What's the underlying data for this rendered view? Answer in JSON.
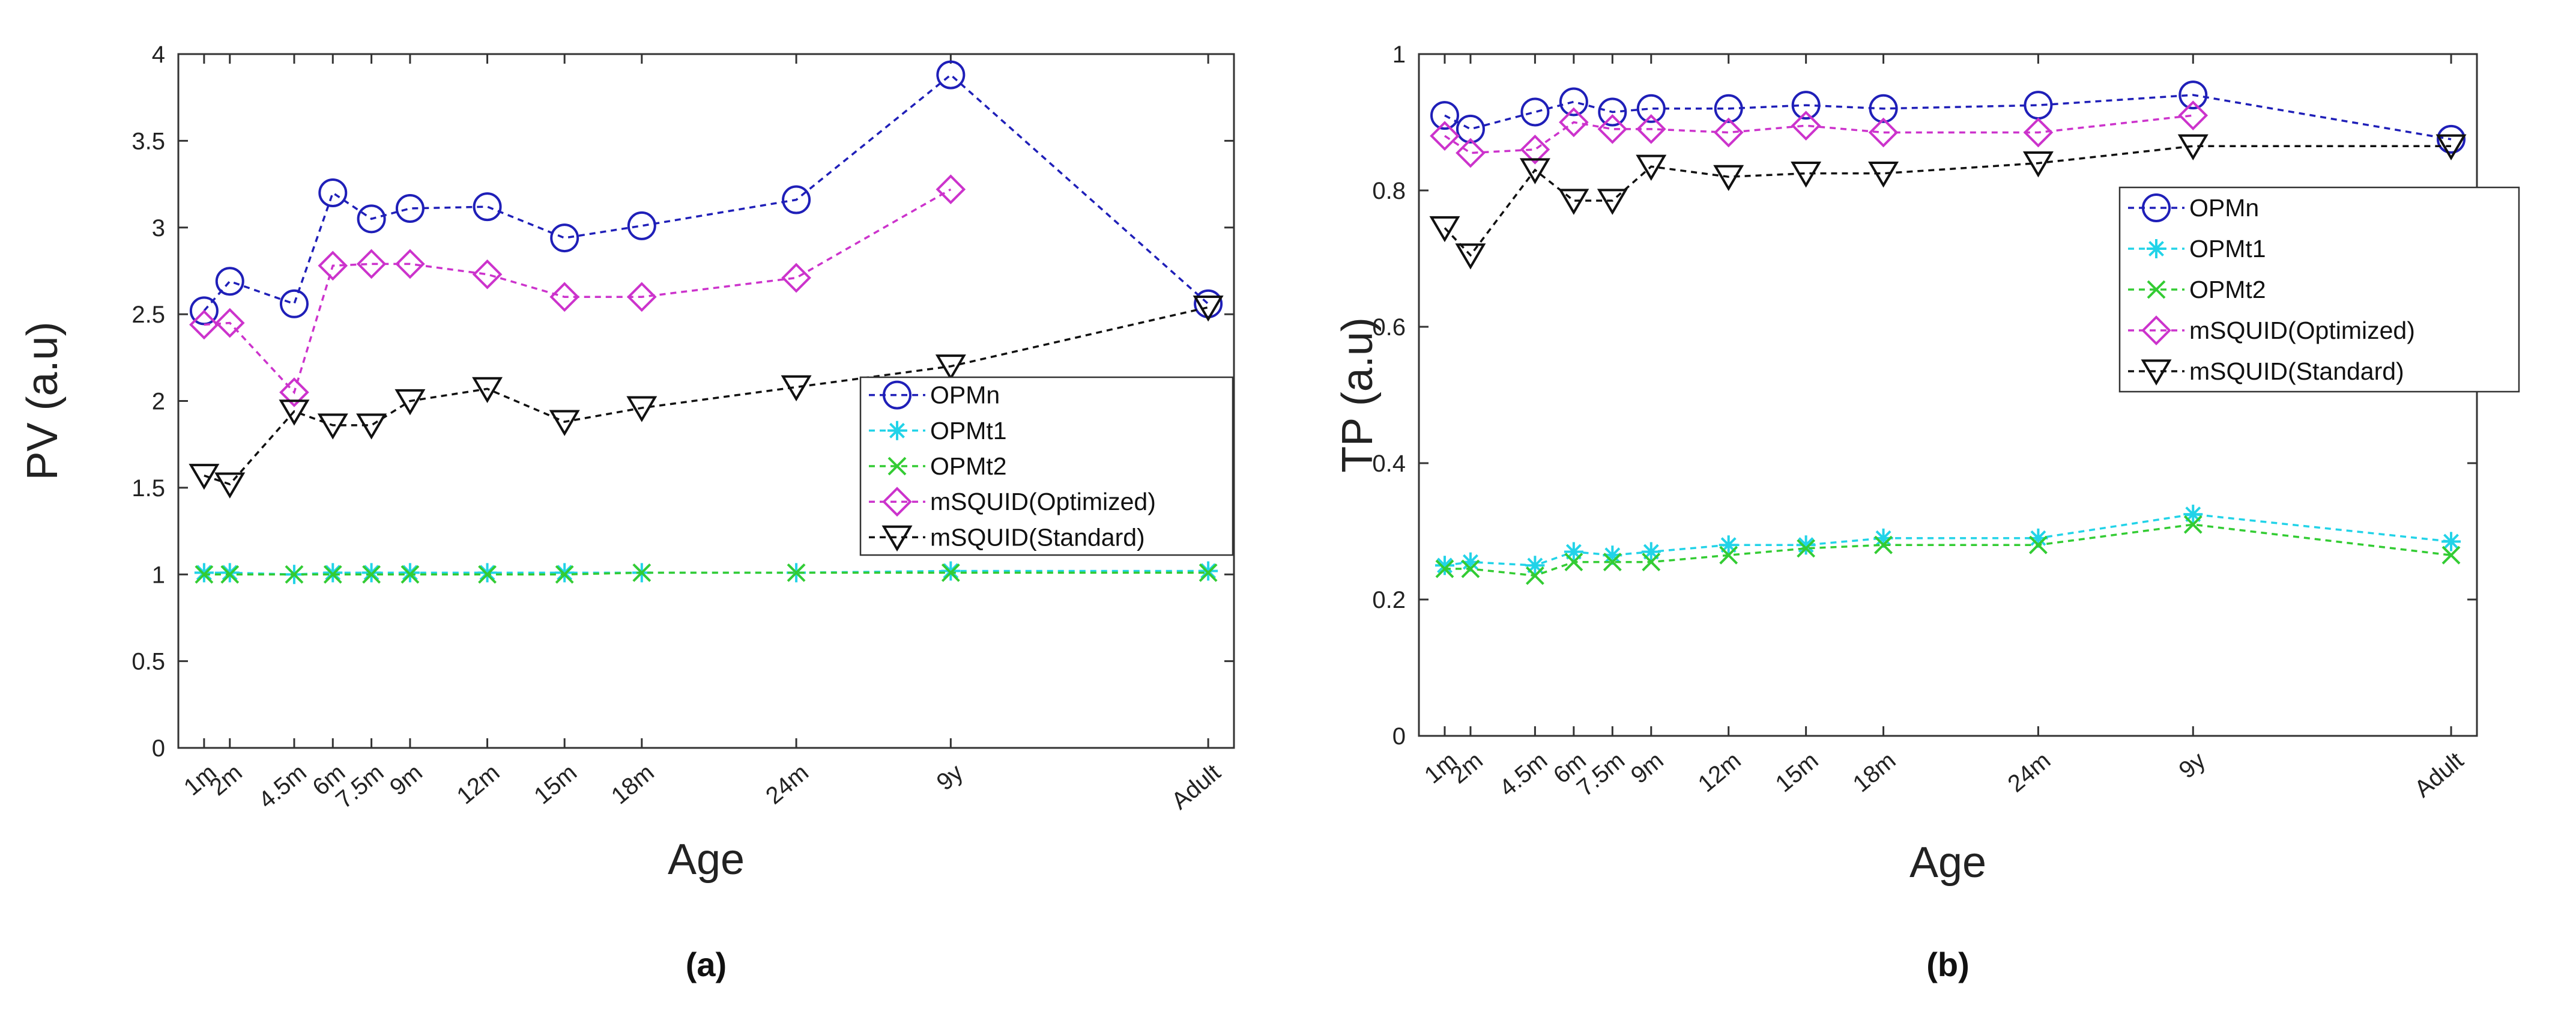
{
  "figure": {
    "series_defs": [
      {
        "name": "OPMn",
        "color": "#1f1fb8",
        "marker": "circle"
      },
      {
        "name": "OPMt1",
        "color": "#22d3e8",
        "marker": "asterisk"
      },
      {
        "name": "OPMt2",
        "color": "#33cc33",
        "marker": "x"
      },
      {
        "name": "mSQUID(Optimized)",
        "color": "#cc33cc",
        "marker": "diamond"
      },
      {
        "name": "mSQUID(Standard)",
        "color": "#111111",
        "marker": "triangle-down"
      }
    ]
  },
  "chart_data": [
    {
      "type": "line",
      "panel_label": "(a)",
      "title": "",
      "xlabel": "Age",
      "ylabel": "PV (a.u)",
      "xticks": [
        "1m",
        "2m",
        "4.5m",
        "6m",
        "7.5m",
        "9m",
        "12m",
        "15m",
        "18m",
        "24m",
        "9y",
        "Adult"
      ],
      "x": [
        1,
        2,
        4.5,
        6,
        7.5,
        9,
        12,
        15,
        18,
        24,
        30,
        40
      ],
      "xlim": [
        0,
        41
      ],
      "ylim": [
        0,
        4
      ],
      "yticks": [
        "0",
        "0.5",
        "1",
        "1.5",
        "2",
        "2.5",
        "3",
        "3.5",
        "4"
      ],
      "ytick_values": [
        0,
        0.5,
        1,
        1.5,
        2,
        2.5,
        3,
        3.5,
        4
      ],
      "legend_position": "middle-right",
      "series": [
        {
          "name": "OPMn",
          "values": [
            2.52,
            2.69,
            2.56,
            3.2,
            3.05,
            3.11,
            3.12,
            2.94,
            3.01,
            3.16,
            3.88,
            2.56
          ]
        },
        {
          "name": "OPMt1",
          "values": [
            1.01,
            1.01,
            1.0,
            1.01,
            1.01,
            1.01,
            1.01,
            1.01,
            1.01,
            1.01,
            1.02,
            1.02
          ]
        },
        {
          "name": "OPMt2",
          "values": [
            1.0,
            1.0,
            1.0,
            1.0,
            1.0,
            1.0,
            1.0,
            1.0,
            1.01,
            1.01,
            1.01,
            1.01
          ]
        },
        {
          "name": "mSQUID(Optimized)",
          "values": [
            2.44,
            2.45,
            2.05,
            2.78,
            2.79,
            2.79,
            2.73,
            2.6,
            2.6,
            2.71,
            3.22,
            null
          ]
        },
        {
          "name": "mSQUID(Standard)",
          "values": [
            1.57,
            1.52,
            1.94,
            1.86,
            1.86,
            2.0,
            2.07,
            1.88,
            1.96,
            2.08,
            2.2,
            2.54
          ]
        }
      ]
    },
    {
      "type": "line",
      "panel_label": "(b)",
      "title": "",
      "xlabel": "Age",
      "ylabel": "TP (a.u)",
      "xticks": [
        "1m",
        "2m",
        "4.5m",
        "6m",
        "7.5m",
        "9m",
        "12m",
        "15m",
        "18m",
        "24m",
        "9y",
        "Adult"
      ],
      "x": [
        1,
        2,
        4.5,
        6,
        7.5,
        9,
        12,
        15,
        18,
        24,
        30,
        40
      ],
      "xlim": [
        0,
        41
      ],
      "ylim": [
        0,
        1
      ],
      "yticks": [
        "0",
        "0.2",
        "0.4",
        "0.6",
        "0.8",
        "1"
      ],
      "ytick_values": [
        0,
        0.2,
        0.4,
        0.6,
        0.8,
        1
      ],
      "legend_position": "top-right",
      "series": [
        {
          "name": "OPMn",
          "values": [
            0.91,
            0.89,
            0.915,
            0.93,
            0.915,
            0.92,
            0.92,
            0.925,
            0.92,
            0.925,
            0.94,
            0.875
          ]
        },
        {
          "name": "OPMt1",
          "values": [
            0.25,
            0.255,
            0.25,
            0.27,
            0.265,
            0.27,
            0.28,
            0.28,
            0.29,
            0.29,
            0.325,
            0.285
          ]
        },
        {
          "name": "OPMt2",
          "values": [
            0.245,
            0.245,
            0.235,
            0.255,
            0.255,
            0.255,
            0.265,
            0.275,
            0.28,
            0.28,
            0.31,
            0.265
          ]
        },
        {
          "name": "mSQUID(Optimized)",
          "values": [
            0.88,
            0.855,
            0.86,
            0.9,
            0.89,
            0.89,
            0.885,
            0.895,
            0.885,
            0.885,
            0.91,
            null
          ]
        },
        {
          "name": "mSQUID(Standard)",
          "values": [
            0.745,
            0.705,
            0.83,
            0.785,
            0.785,
            0.835,
            0.82,
            0.825,
            0.825,
            0.84,
            0.865,
            0.865
          ]
        }
      ]
    }
  ]
}
